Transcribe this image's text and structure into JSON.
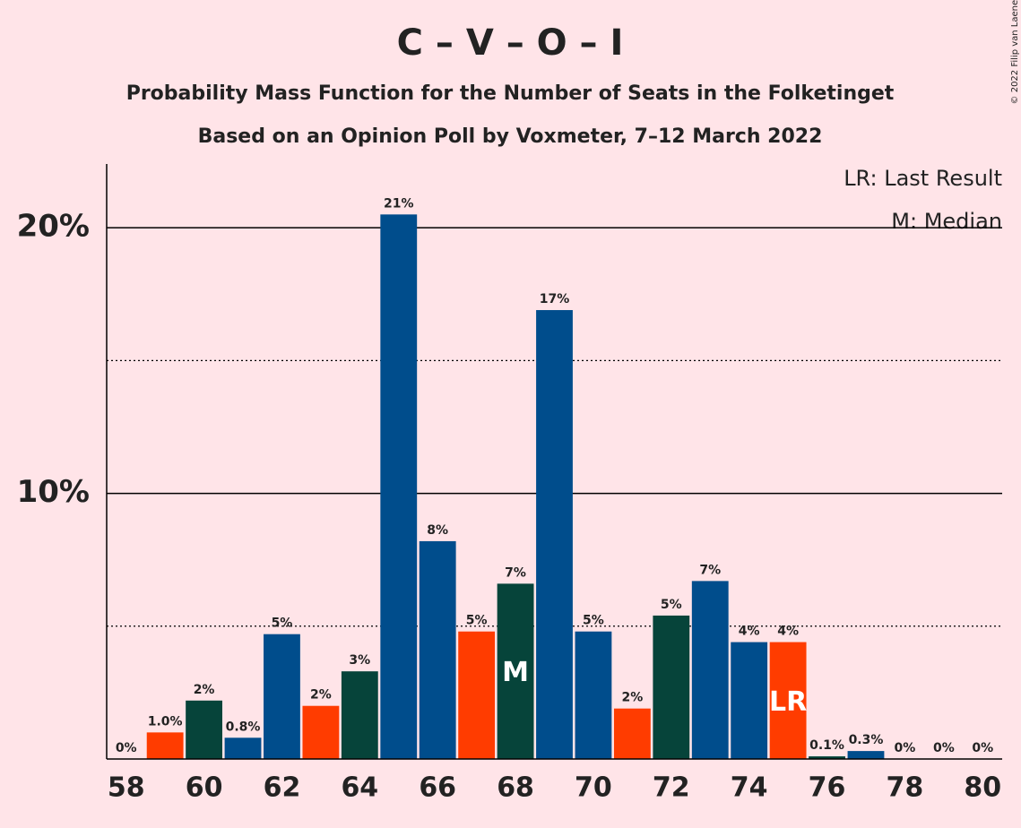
{
  "chart_data": {
    "type": "bar",
    "title": "C – V – O – I",
    "subtitle": "Probability Mass Function for the Number of Seats in the Folketinget",
    "subtitle2": "Based on an Opinion Poll by Voxmeter, 7–12 March 2022",
    "copyright": "© 2022 Filip van Laenen",
    "x": [
      58,
      59,
      60,
      61,
      62,
      63,
      64,
      65,
      66,
      67,
      68,
      69,
      70,
      71,
      72,
      73,
      74,
      75,
      76,
      77,
      78,
      79,
      80
    ],
    "values": [
      0,
      1.0,
      2.2,
      0.8,
      4.7,
      2.0,
      3.3,
      20.5,
      8.2,
      4.8,
      6.6,
      16.9,
      4.8,
      1.9,
      5.4,
      6.7,
      4.4,
      4.4,
      0.1,
      0.3,
      0,
      0,
      0
    ],
    "value_labels": [
      "0%",
      "1.0%",
      "2%",
      "0.8%",
      "5%",
      "2%",
      "3%",
      "21%",
      "8%",
      "5%",
      "7%",
      "17%",
      "5%",
      "2%",
      "5%",
      "7%",
      "4%",
      "4%",
      "0.1%",
      "0.3%",
      "0%",
      "0%",
      "0%"
    ],
    "colors": [
      "#004d8c",
      "#ff3c00",
      "#06443a",
      "#004d8c",
      "#004d8c",
      "#ff3c00",
      "#06443a",
      "#004d8c",
      "#004d8c",
      "#ff3c00",
      "#06443a",
      "#004d8c",
      "#004d8c",
      "#ff3c00",
      "#06443a",
      "#004d8c",
      "#004d8c",
      "#ff3c00",
      "#06443a",
      "#004d8c",
      "#004d8c",
      "#ff3c00",
      "#06443a"
    ],
    "xlim": [
      57.5,
      80.5
    ],
    "xticks": [
      58,
      60,
      62,
      64,
      66,
      68,
      70,
      72,
      74,
      76,
      78,
      80
    ],
    "ylim": [
      0,
      22.4
    ],
    "yticks": [
      {
        "value": 10,
        "label": "10%"
      },
      {
        "value": 20,
        "label": "20%"
      }
    ],
    "minor_yticks": [
      5,
      15
    ],
    "median": {
      "x": 68,
      "label": "M"
    },
    "last_result": {
      "x": 75,
      "label": "LR"
    },
    "legend": [
      "LR: Last Result",
      "M: Median"
    ]
  }
}
